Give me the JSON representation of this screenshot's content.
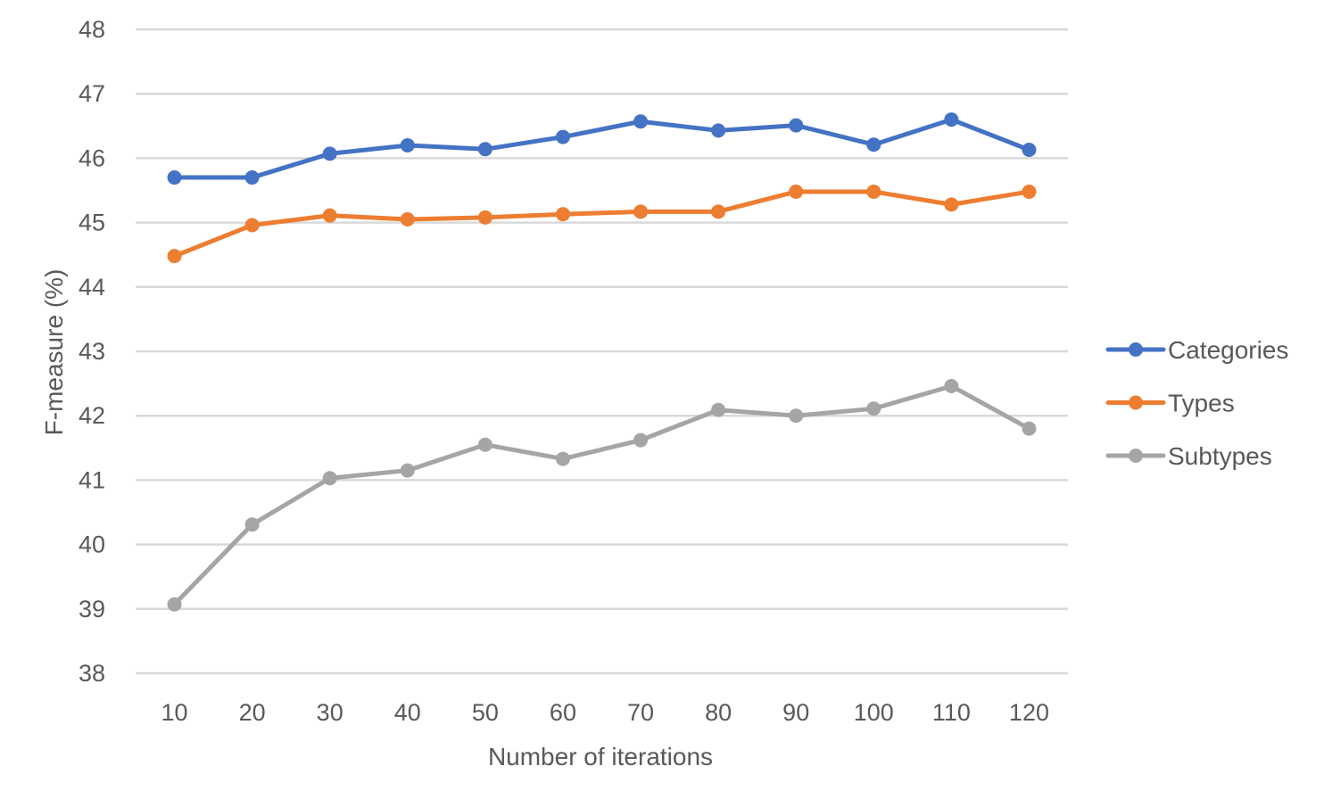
{
  "chart_data": {
    "type": "line",
    "title": "",
    "xlabel": "Number of iterations",
    "ylabel": "F-measure (%)",
    "categories": [
      "10",
      "20",
      "30",
      "40",
      "50",
      "60",
      "70",
      "80",
      "90",
      "100",
      "110",
      "120"
    ],
    "ylim": [
      38,
      48
    ],
    "yticks": [
      "38",
      "39",
      "40",
      "41",
      "42",
      "43",
      "44",
      "45",
      "46",
      "47",
      "48"
    ],
    "grid": true,
    "legend_position": "right",
    "series": [
      {
        "name": "Categories",
        "color": "#4472c4",
        "values": [
          45.7,
          45.7,
          46.07,
          46.2,
          46.14,
          46.33,
          46.57,
          46.43,
          46.51,
          46.21,
          46.6,
          46.13
        ]
      },
      {
        "name": "Types",
        "color": "#ed7d31",
        "values": [
          44.48,
          44.96,
          45.11,
          45.05,
          45.08,
          45.13,
          45.17,
          45.17,
          45.48,
          45.48,
          45.28,
          45.48
        ]
      },
      {
        "name": "Subtypes",
        "color": "#a5a5a5",
        "values": [
          39.07,
          40.31,
          41.03,
          41.15,
          41.55,
          41.33,
          41.62,
          42.09,
          42.0,
          42.11,
          42.46,
          41.8
        ]
      }
    ]
  }
}
